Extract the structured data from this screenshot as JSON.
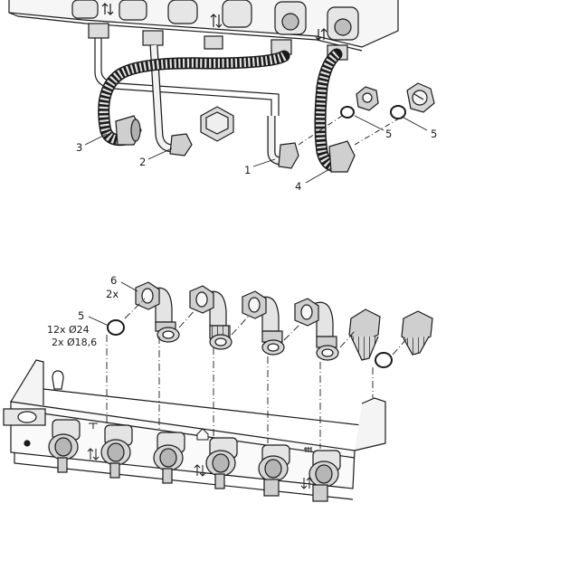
{
  "top_section": {
    "callouts": [
      {
        "id": "c1",
        "text": "1"
      },
      {
        "id": "c2",
        "text": "2"
      },
      {
        "id": "c3",
        "text": "3"
      },
      {
        "id": "c4",
        "text": "4"
      },
      {
        "id": "c5a",
        "text": "5"
      },
      {
        "id": "c5b",
        "text": "5"
      }
    ]
  },
  "bottom_section": {
    "callout_6": "6",
    "callout_6_qty": "2x",
    "callout_5": "5",
    "seal_spec_1": "12x Ø24",
    "seal_spec_2": "2x Ø18,6"
  },
  "colors": {
    "line": "#1a1a1a",
    "fill_light": "#ececec",
    "fill_mid": "#c8c8c8",
    "fill_dark": "#8a8a8a",
    "background": "#ffffff"
  }
}
